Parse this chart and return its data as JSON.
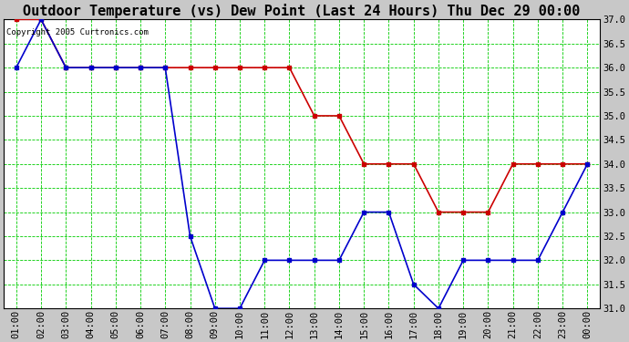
{
  "title": "Outdoor Temperature (vs) Dew Point (Last 24 Hours) Thu Dec 29 00:00",
  "copyright": "Copyright 2005 Curtronics.com",
  "x_labels": [
    "01:00",
    "02:00",
    "03:00",
    "04:00",
    "05:00",
    "06:00",
    "07:00",
    "08:00",
    "09:00",
    "10:00",
    "11:00",
    "12:00",
    "13:00",
    "14:00",
    "15:00",
    "16:00",
    "17:00",
    "18:00",
    "19:00",
    "20:00",
    "21:00",
    "22:00",
    "23:00",
    "00:00"
  ],
  "temp_values": [
    37.0,
    37.0,
    36.0,
    36.0,
    36.0,
    36.0,
    36.0,
    36.0,
    36.0,
    36.0,
    36.0,
    36.0,
    35.0,
    35.0,
    34.0,
    34.0,
    34.0,
    33.0,
    33.0,
    33.0,
    34.0,
    34.0,
    34.0,
    34.0
  ],
  "dew_values": [
    36.0,
    37.0,
    36.0,
    36.0,
    36.0,
    36.0,
    36.0,
    32.5,
    31.0,
    31.0,
    32.0,
    32.0,
    32.0,
    32.0,
    33.0,
    33.0,
    31.5,
    31.0,
    32.0,
    32.0,
    32.0,
    32.0,
    33.0,
    34.0
  ],
  "temp_color": "#cc0000",
  "dew_color": "#0000cc",
  "grid_color": "#00cc00",
  "bg_color": "#ffffff",
  "outer_bg": "#c8c8c8",
  "ylim_min": 31.0,
  "ylim_max": 37.0,
  "ytick_step": 0.5,
  "marker": "s",
  "marker_size": 2.5,
  "line_width": 1.2,
  "title_fontsize": 11,
  "tick_fontsize": 7.5,
  "copyright_fontsize": 6.5
}
